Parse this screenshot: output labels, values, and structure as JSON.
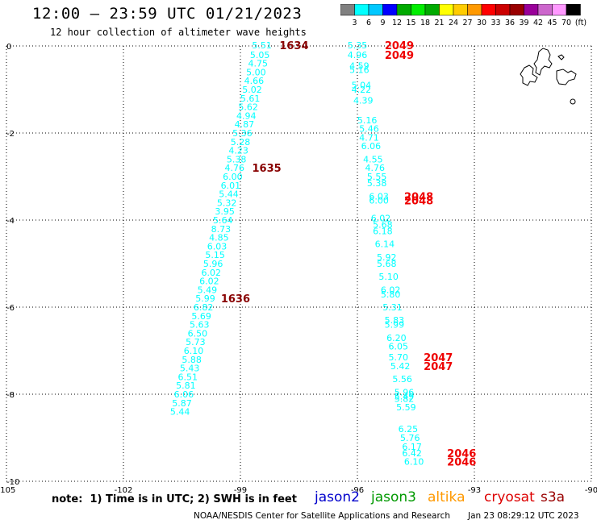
{
  "title": "12:00 – 23:59 UTC 01/21/2023",
  "subtitle": "12 hour collection of altimeter wave heights",
  "color_scale": {
    "unit_label": "(ft)",
    "colors": [
      "#808080",
      "#00ffff",
      "#00c8ff",
      "#0000ff",
      "#00aa00",
      "#00ee00",
      "#00aa00",
      "#ffff00",
      "#ffcc00",
      "#ff9900",
      "#ff0000",
      "#cc0000",
      "#990000",
      "#990099",
      "#cc66cc",
      "#ff99ff",
      "#000000"
    ],
    "labels": [
      "3",
      "6",
      "9",
      "12",
      "15",
      "18",
      "21",
      "24",
      "27",
      "30",
      "33",
      "36",
      "39",
      "42",
      "45",
      "70"
    ]
  },
  "note": "note:  1) Time is in UTC; 2) SWH is in feet",
  "credit": "NOAA/NESDIS Center for Satellite Applications and Research",
  "timestamp": "Jan 23 08:29:12 UTC 2023",
  "satellites": [
    {
      "name": "jason2",
      "color": "#0000cc"
    },
    {
      "name": "jason3",
      "color": "#009900"
    },
    {
      "name": "altika",
      "color": "#ff9900"
    },
    {
      "name": "cryosat",
      "color": "#dd0000"
    },
    {
      "name": "s3a",
      "color": "#990000"
    }
  ],
  "chart_data": {
    "type": "scatter",
    "xlim": [
      -105,
      -90
    ],
    "ylim": [
      -10,
      0
    ],
    "x_ticks": [
      -105,
      -102,
      -99,
      -96,
      -93,
      -90
    ],
    "x_tick_labels": [
      "-105",
      "-102",
      "-99",
      "-96",
      "-93",
      "-90"
    ],
    "y_ticks": [
      0,
      -2,
      -4,
      -6,
      -8,
      -10
    ],
    "y_tick_labels": [
      "0",
      "-2",
      "-4",
      "-6",
      "-8",
      "-10"
    ],
    "grid": true,
    "series": [
      {
        "color": "#00ffff",
        "points": [
          [
            -98.45,
            0.02,
            "5.51"
          ],
          [
            -98.5,
            -0.2,
            "5.05"
          ],
          [
            -98.55,
            -0.4,
            "4.75"
          ],
          [
            -98.6,
            -0.6,
            "5.00"
          ],
          [
            -98.65,
            -0.8,
            "4.66"
          ],
          [
            -98.7,
            -1.0,
            "5.02"
          ],
          [
            -98.75,
            -1.2,
            "5.61"
          ],
          [
            -98.8,
            -1.4,
            "5.62"
          ],
          [
            -98.85,
            -1.6,
            "4.94"
          ],
          [
            -98.9,
            -1.8,
            "4.87"
          ],
          [
            -98.95,
            -2.0,
            "5.36"
          ],
          [
            -99.0,
            -2.2,
            "5.28"
          ],
          [
            -99.05,
            -2.4,
            "4.23"
          ],
          [
            -99.1,
            -2.6,
            "5.38"
          ],
          [
            -99.15,
            -2.8,
            "4.76"
          ],
          [
            -99.2,
            -3.0,
            "6.00"
          ],
          [
            -99.25,
            -3.2,
            "6.01"
          ],
          [
            -99.3,
            -3.4,
            "5.44"
          ],
          [
            -99.35,
            -3.6,
            "5.32"
          ],
          [
            -99.4,
            -3.8,
            "3.95"
          ],
          [
            -99.45,
            -4.0,
            "5.64"
          ],
          [
            -99.5,
            -4.2,
            "8.73"
          ],
          [
            -99.55,
            -4.4,
            "4.85"
          ],
          [
            -99.6,
            -4.6,
            "6.03"
          ],
          [
            -99.65,
            -4.8,
            "5.15"
          ],
          [
            -99.7,
            -5.0,
            "5.96"
          ],
          [
            -99.75,
            -5.2,
            "6.02"
          ],
          [
            -99.8,
            -5.4,
            "6.02"
          ],
          [
            -99.85,
            -5.6,
            "5.49"
          ],
          [
            -99.9,
            -5.8,
            "5.99"
          ],
          [
            -99.95,
            -6.0,
            "6.82"
          ],
          [
            -100.0,
            -6.2,
            "5.69"
          ],
          [
            -100.05,
            -6.4,
            "5.63"
          ],
          [
            -100.1,
            -6.6,
            "6.50"
          ],
          [
            -100.15,
            -6.8,
            "5.73"
          ],
          [
            -100.2,
            -7.0,
            "6.10"
          ],
          [
            -100.25,
            -7.2,
            "5.88"
          ],
          [
            -100.3,
            -7.4,
            "5.43"
          ],
          [
            -100.35,
            -7.6,
            "6.51"
          ],
          [
            -100.4,
            -7.8,
            "5.81"
          ],
          [
            -100.45,
            -8.0,
            "6.06"
          ],
          [
            -100.5,
            -8.2,
            "5.87"
          ],
          [
            -100.55,
            -8.4,
            "5.44"
          ]
        ]
      },
      {
        "color": "#00ffff",
        "points": [
          [
            -96.0,
            0.02,
            "5.35"
          ],
          [
            -96.0,
            -0.2,
            "4.96"
          ],
          [
            -95.95,
            -0.45,
            "4.59"
          ],
          [
            -95.95,
            -0.55,
            "5.16"
          ],
          [
            -95.9,
            -0.9,
            "5.04"
          ],
          [
            -95.9,
            -1.0,
            "4.22"
          ],
          [
            -95.85,
            -1.25,
            "4.39"
          ],
          [
            -95.75,
            -1.7,
            "5.16"
          ],
          [
            -95.7,
            -1.9,
            "5.46"
          ],
          [
            -95.7,
            -2.1,
            "4.71"
          ],
          [
            -95.65,
            -2.3,
            "6.06"
          ],
          [
            -95.6,
            -2.6,
            "4.55"
          ],
          [
            -95.55,
            -2.8,
            "4.76"
          ],
          [
            -95.5,
            -3.0,
            "5.55"
          ],
          [
            -95.5,
            -3.15,
            "5.38"
          ],
          [
            -95.45,
            -3.45,
            "6.03"
          ],
          [
            -95.45,
            -3.55,
            "6.00"
          ],
          [
            -95.4,
            -3.95,
            "6.02"
          ],
          [
            -95.35,
            -4.1,
            "5.68"
          ],
          [
            -95.35,
            -4.25,
            "6.18"
          ],
          [
            -95.3,
            -4.55,
            "6.14"
          ],
          [
            -95.25,
            -4.85,
            "5.92"
          ],
          [
            -95.25,
            -5.0,
            "5.68"
          ],
          [
            -95.2,
            -5.3,
            "5.10"
          ],
          [
            -95.15,
            -5.6,
            "6.02"
          ],
          [
            -95.15,
            -5.7,
            "5.80"
          ],
          [
            -95.1,
            -6.0,
            "5.31"
          ],
          [
            -95.05,
            -6.3,
            "5.83"
          ],
          [
            -95.05,
            -6.4,
            "5.99"
          ],
          [
            -95.0,
            -6.7,
            "6.20"
          ],
          [
            -94.95,
            -6.9,
            "6.05"
          ],
          [
            -94.95,
            -7.15,
            "5.70"
          ],
          [
            -94.9,
            -7.35,
            "5.42"
          ],
          [
            -94.85,
            -7.65,
            "5.56"
          ],
          [
            -94.8,
            -7.95,
            "5.96"
          ],
          [
            -94.8,
            -8.05,
            "5.49"
          ],
          [
            -94.8,
            -8.1,
            "5.82"
          ],
          [
            -94.75,
            -8.3,
            "5.59"
          ],
          [
            -94.7,
            -8.8,
            "6.25"
          ],
          [
            -94.65,
            -9.0,
            "5.76"
          ],
          [
            -94.6,
            -9.2,
            "6.17"
          ],
          [
            -94.6,
            -9.35,
            "6.42"
          ],
          [
            -94.55,
            -9.55,
            "6.10"
          ]
        ]
      }
    ],
    "time_labels": [
      {
        "text": "1634",
        "x": -98.0,
        "y": 0.02,
        "color": "#880000"
      },
      {
        "text": "1635",
        "x": -98.7,
        "y": -2.8,
        "color": "#880000"
      },
      {
        "text": "1636",
        "x": -99.5,
        "y": -5.8,
        "color": "#880000"
      },
      {
        "text": "2049",
        "x": -95.3,
        "y": 0.02,
        "color": "#ee0000"
      },
      {
        "text": "2049",
        "x": -95.3,
        "y": -0.2,
        "color": "#ee0000"
      },
      {
        "text": "2048",
        "x": -94.8,
        "y": -3.45,
        "color": "#ee0000"
      },
      {
        "text": "2048",
        "x": -94.8,
        "y": -3.55,
        "color": "#ee0000"
      },
      {
        "text": "2047",
        "x": -94.3,
        "y": -7.15,
        "color": "#ee0000"
      },
      {
        "text": "2047",
        "x": -94.3,
        "y": -7.35,
        "color": "#ee0000"
      },
      {
        "text": "2046",
        "x": -93.7,
        "y": -9.35,
        "color": "#ee0000"
      },
      {
        "text": "2046",
        "x": -93.7,
        "y": -9.55,
        "color": "#ee0000"
      }
    ]
  }
}
